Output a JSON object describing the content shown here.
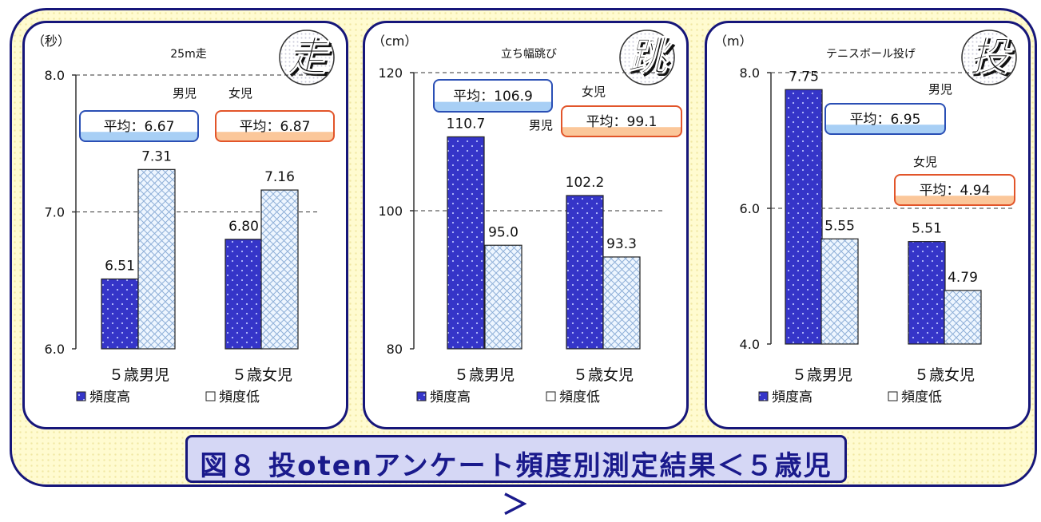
{
  "figure_caption": "図８ 投otenアンケート頻度別測定結果＜５歳児＞",
  "chart_data": [
    {
      "type": "bar",
      "title": "25m走",
      "unit_label": "（秒）",
      "emblem_char": "走",
      "emblem_color": "#2a45c8",
      "categories": [
        "５歳男児",
        "５歳女児"
      ],
      "series": [
        {
          "name": "頻度高",
          "values": [
            6.51,
            6.8
          ],
          "labels": [
            "6.51",
            "6.80"
          ]
        },
        {
          "name": "頻度低",
          "values": [
            7.31,
            7.16
          ],
          "labels": [
            "7.31",
            "7.16"
          ]
        }
      ],
      "ylim": [
        6.0,
        8.0
      ],
      "yticks": [
        "6.0",
        "7.0",
        "8.0"
      ],
      "ytick_values": [
        6.0,
        7.0,
        8.0
      ],
      "grid_values": [
        7.0,
        8.0
      ],
      "averages": [
        {
          "group": "男児",
          "text": "平均：6.67",
          "color": "#2a4fb5",
          "label_color": "#2a2a9c"
        },
        {
          "group": "女児",
          "text": "平均：6.87",
          "color": "#e2552a",
          "label_color": "#e02020"
        }
      ]
    },
    {
      "type": "bar",
      "title": "立ち幅跳び",
      "unit_label": "（cm）",
      "emblem_char": "跳",
      "emblem_color": "#e02a2a",
      "categories": [
        "５歳男児",
        "５歳女児"
      ],
      "series": [
        {
          "name": "頻度高",
          "values": [
            110.7,
            102.2
          ],
          "labels": [
            "110.7",
            "102.2"
          ]
        },
        {
          "name": "頻度低",
          "values": [
            95.0,
            93.3
          ],
          "labels": [
            "95.0",
            "93.3"
          ]
        }
      ],
      "ylim": [
        80,
        120
      ],
      "yticks": [
        "80",
        "100",
        "120"
      ],
      "ytick_values": [
        80,
        100,
        120
      ],
      "grid_values": [
        100,
        120
      ],
      "averages": [
        {
          "group": "男児",
          "text": "平均：106.9",
          "color": "#2a4fb5",
          "label_color": "#2a2a9c"
        },
        {
          "group": "女児",
          "text": "平均：99.1",
          "color": "#e2552a",
          "label_color": "#e02020"
        }
      ]
    },
    {
      "type": "bar",
      "title": "テニスボール投げ",
      "unit_label": "（m）",
      "emblem_char": "投",
      "emblem_color": "#9a4a1a",
      "categories": [
        "５歳男児",
        "５歳女児"
      ],
      "series": [
        {
          "name": "頻度高",
          "values": [
            7.75,
            5.51
          ],
          "labels": [
            "7.75",
            "5.51"
          ]
        },
        {
          "name": "頻度低",
          "values": [
            5.55,
            4.79
          ],
          "labels": [
            "5.55",
            "4.79"
          ]
        }
      ],
      "ylim": [
        4.0,
        8.0
      ],
      "yticks": [
        "4.0",
        "6.0",
        "8.0"
      ],
      "ytick_values": [
        4.0,
        6.0,
        8.0
      ],
      "grid_values": [
        6.0,
        8.0
      ],
      "averages": [
        {
          "group": "男児",
          "text": "平均：6.95",
          "color": "#2a4fb5",
          "label_color": "#2a2a9c"
        },
        {
          "group": "女児",
          "text": "平均：4.94",
          "color": "#e2552a",
          "label_color": "#e02020"
        }
      ]
    }
  ]
}
